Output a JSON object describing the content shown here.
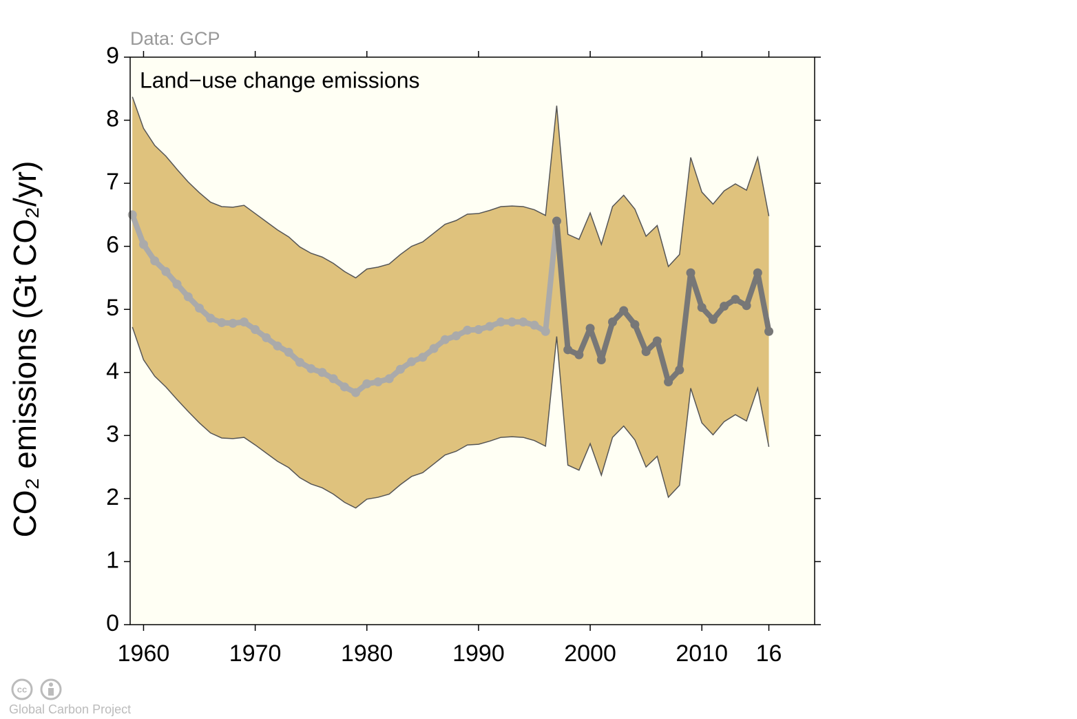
{
  "chart_data": {
    "type": "line",
    "title": "Land−use change emissions",
    "source": "Data: GCP",
    "y_label": "CO₂ emissions (Gt CO₂/yr)",
    "credit": "Global Carbon Project",
    "license": "cc",
    "x": [
      1959,
      1960,
      1961,
      1962,
      1963,
      1964,
      1965,
      1966,
      1967,
      1968,
      1969,
      1970,
      1971,
      1972,
      1973,
      1974,
      1975,
      1976,
      1977,
      1978,
      1979,
      1980,
      1981,
      1982,
      1983,
      1984,
      1985,
      1986,
      1987,
      1988,
      1989,
      1990,
      1991,
      1992,
      1993,
      1994,
      1995,
      1996,
      1997,
      1998,
      1999,
      2000,
      2001,
      2002,
      2003,
      2004,
      2005,
      2006,
      2007,
      2008,
      2009,
      2010,
      2011,
      2012,
      2013,
      2014,
      2015,
      2016
    ],
    "band": {
      "color": "#dfc27d",
      "edge_color": "#555555",
      "upper": [
        8.37,
        7.87,
        7.6,
        7.43,
        7.22,
        7.02,
        6.85,
        6.7,
        6.63,
        6.62,
        6.65,
        6.52,
        6.39,
        6.26,
        6.15,
        5.99,
        5.89,
        5.83,
        5.73,
        5.6,
        5.5,
        5.64,
        5.67,
        5.72,
        5.87,
        6.0,
        6.07,
        6.21,
        6.35,
        6.41,
        6.51,
        6.52,
        6.57,
        6.63,
        6.64,
        6.63,
        6.58,
        6.49,
        8.23,
        6.19,
        6.11,
        6.53,
        6.03,
        6.63,
        6.81,
        6.59,
        6.16,
        6.33,
        5.68,
        5.87,
        7.41,
        6.86,
        6.67,
        6.88,
        6.99,
        6.89,
        7.41,
        6.48
      ],
      "lower": [
        4.72,
        4.2,
        3.94,
        3.77,
        3.57,
        3.38,
        3.2,
        3.04,
        2.96,
        2.95,
        2.97,
        2.85,
        2.72,
        2.59,
        2.49,
        2.33,
        2.23,
        2.17,
        2.07,
        1.94,
        1.85,
        1.99,
        2.02,
        2.07,
        2.22,
        2.35,
        2.41,
        2.55,
        2.69,
        2.75,
        2.85,
        2.86,
        2.91,
        2.97,
        2.98,
        2.97,
        2.92,
        2.83,
        4.57,
        2.53,
        2.45,
        2.87,
        2.37,
        2.97,
        3.15,
        2.93,
        2.5,
        2.67,
        2.02,
        2.21,
        3.75,
        3.2,
        3.01,
        3.22,
        3.33,
        3.23,
        3.75,
        2.82
      ]
    },
    "series": [
      {
        "color": "#aaaaaa",
        "values": [
          6.5,
          6.03,
          5.77,
          5.6,
          5.4,
          5.2,
          5.02,
          4.86,
          4.79,
          4.78,
          4.8,
          4.68,
          4.55,
          4.42,
          4.32,
          4.16,
          4.06,
          4.0,
          3.9,
          3.77,
          3.68,
          3.82,
          3.85,
          3.9,
          4.05,
          4.17,
          4.24,
          4.38,
          4.52,
          4.58,
          4.67,
          4.68,
          4.73,
          4.8,
          4.8,
          4.8,
          4.75,
          4.65,
          6.4,
          null,
          null,
          null,
          null,
          null,
          null,
          null,
          null,
          null,
          null,
          null,
          null,
          null,
          null,
          null,
          null,
          null,
          null,
          null
        ]
      },
      {
        "color": "#777777",
        "values": [
          null,
          null,
          null,
          null,
          null,
          null,
          null,
          null,
          null,
          null,
          null,
          null,
          null,
          null,
          null,
          null,
          null,
          null,
          null,
          null,
          null,
          null,
          null,
          null,
          null,
          null,
          null,
          null,
          null,
          null,
          null,
          null,
          null,
          null,
          null,
          null,
          null,
          null,
          6.4,
          4.36,
          4.28,
          4.7,
          4.2,
          4.8,
          4.98,
          4.76,
          4.33,
          4.5,
          3.85,
          4.04,
          5.58,
          5.03,
          4.84,
          5.05,
          5.16,
          5.06,
          5.58,
          4.65
        ]
      }
    ],
    "xlim": [
      1958.8,
      2020.1
    ],
    "xticks": [
      1960,
      1970,
      1980,
      1990,
      2000,
      2010,
      {
        "value": 2016,
        "label": "16"
      }
    ],
    "ylim": [
      0,
      9
    ],
    "yticks": [
      0,
      1,
      2,
      3,
      4,
      5,
      6,
      7,
      8,
      9
    ],
    "background": "#fffff4"
  }
}
